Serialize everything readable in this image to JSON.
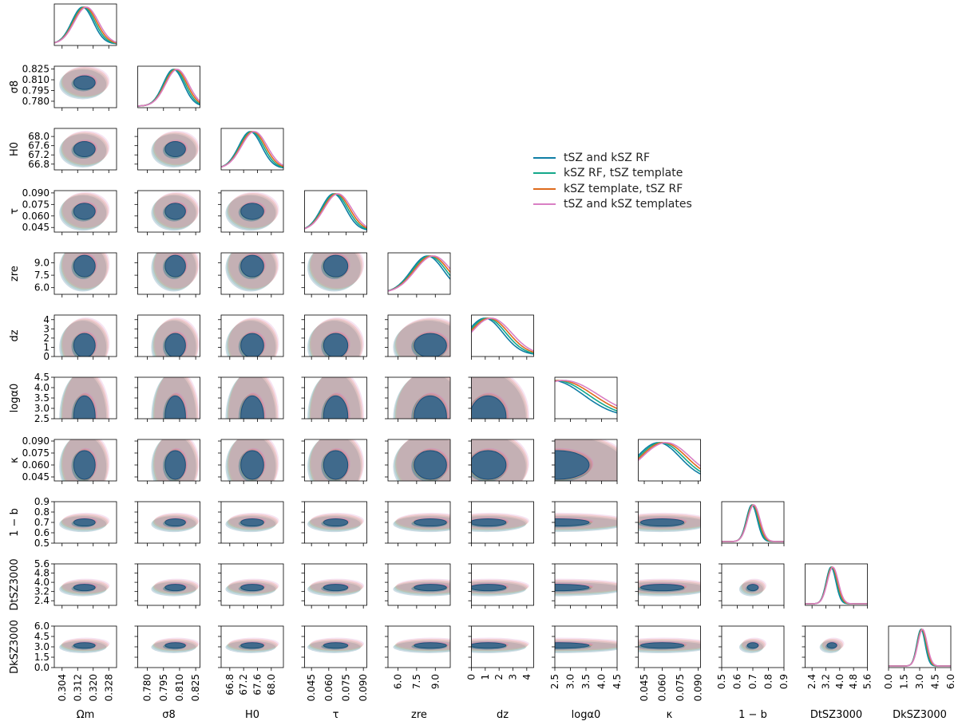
{
  "chart_data": {
    "type": "corner",
    "series": [
      {
        "name": "tSZ and kSZ RF",
        "color": "#0f7ea5",
        "fill": "#1a5f8a"
      },
      {
        "name": "kSZ RF,  tSZ template",
        "color": "#14a88a",
        "fill": "#5aaf8e"
      },
      {
        "name": "kSZ template,  tSZ RF",
        "color": "#de6a1c",
        "fill": "#e8773a"
      },
      {
        "name": "tSZ and kSZ templates",
        "color": "#d97fc4",
        "fill": "#d685c6"
      }
    ],
    "parameters": [
      {
        "key": "om",
        "label": "Ωm",
        "range": [
          0.3,
          0.332
        ],
        "ticks": [
          "0.304",
          "0.312",
          "0.320",
          "0.328"
        ]
      },
      {
        "key": "s8",
        "label": "σ8",
        "range": [
          0.771,
          0.829
        ],
        "ticks": [
          "0.780",
          "0.795",
          "0.810",
          "0.825"
        ]
      },
      {
        "key": "h0",
        "label": "H0",
        "range": [
          66.55,
          68.35
        ],
        "ticks": [
          "66.8",
          "67.2",
          "67.6",
          "68.0"
        ]
      },
      {
        "key": "tau",
        "label": "τ",
        "range": [
          0.039,
          0.093
        ],
        "ticks": [
          "0.045",
          "0.060",
          "0.075",
          "0.090"
        ]
      },
      {
        "key": "zre",
        "label": "zre",
        "range": [
          5.2,
          10.2
        ],
        "ticks": [
          "6.0",
          "7.5",
          "9.0"
        ]
      },
      {
        "key": "dz",
        "label": "dz",
        "range": [
          0,
          4.5
        ],
        "ticks": [
          "0",
          "1",
          "2",
          "3",
          "4"
        ]
      },
      {
        "key": "la",
        "label": "logα0",
        "range": [
          2.5,
          4.5
        ],
        "ticks": [
          "2.5",
          "3.0",
          "3.5",
          "4.0",
          "4.5"
        ]
      },
      {
        "key": "ka",
        "label": "κ",
        "range": [
          0.04,
          0.092
        ],
        "ticks": [
          "0.045",
          "0.060",
          "0.075",
          "0.090"
        ]
      },
      {
        "key": "b",
        "label": "1 − b",
        "range": [
          0.5,
          0.9
        ],
        "ticks": [
          "0.5",
          "0.6",
          "0.7",
          "0.8",
          "0.9"
        ]
      },
      {
        "key": "dt",
        "label": "DtSZ3000",
        "range": [
          2.0,
          5.6
        ],
        "ticks": [
          "2.4",
          "3.2",
          "4.0",
          "4.8",
          "5.6"
        ]
      },
      {
        "key": "dk",
        "label": "DkSZ3000",
        "range": [
          0.0,
          6.0
        ],
        "ticks": [
          "0.0",
          "1.5",
          "3.0",
          "4.5",
          "6.0"
        ]
      }
    ],
    "ylabels": [
      "",
      "σ8",
      "H0",
      "τ",
      "zre",
      "dz",
      "logα0",
      "κ",
      "1 − b",
      "DtSZ3000",
      "DkSZ3000"
    ],
    "ytick_labels": [
      [],
      [
        "0.825",
        "0.810",
        "0.795",
        "0.780"
      ],
      [
        "68.0",
        "67.6",
        "67.2",
        "66.8"
      ],
      [
        "0.090",
        "0.075",
        "0.060",
        "0.045"
      ],
      [
        "9.0",
        "7.5",
        "6.0"
      ],
      [
        "4",
        "3",
        "2",
        "1",
        "0"
      ],
      [
        "4.5",
        "4.0",
        "3.5",
        "3.0",
        "2.5"
      ],
      [
        "0.090",
        "0.075",
        "0.060",
        "0.045"
      ],
      [
        "0.9",
        "0.8",
        "0.7",
        "0.6",
        "0.5"
      ],
      [
        "5.6",
        "4.8",
        "4.0",
        "3.2",
        "2.4"
      ],
      [
        "6.0",
        "4.5",
        "3.0",
        "1.5",
        "0.0"
      ]
    ],
    "posteriors": {
      "om": {
        "mean": 0.3155,
        "sd": 0.0055
      },
      "s8": {
        "mean": 0.806,
        "sd": 0.0095
      },
      "h0": {
        "mean": 67.45,
        "sd": 0.33
      },
      "tau": {
        "mean": 0.066,
        "sd": 0.0105
      },
      "zre": {
        "mean": 8.6,
        "sd": 1.3
      },
      "dz": {
        "mean": 1.2,
        "sd": 1.3
      },
      "la": {
        "mean": 2.6,
        "sd": 1.0
      },
      "ka": {
        "mean": 0.06,
        "sd": 0.018
      },
      "b": {
        "mean": 0.7,
        "sd": 0.035
      },
      "dt": {
        "mean": 3.55,
        "sd": 0.28
      },
      "dk": {
        "mean": 3.2,
        "sd": 0.4
      }
    },
    "legend_position": "upper-right",
    "grid": false
  }
}
